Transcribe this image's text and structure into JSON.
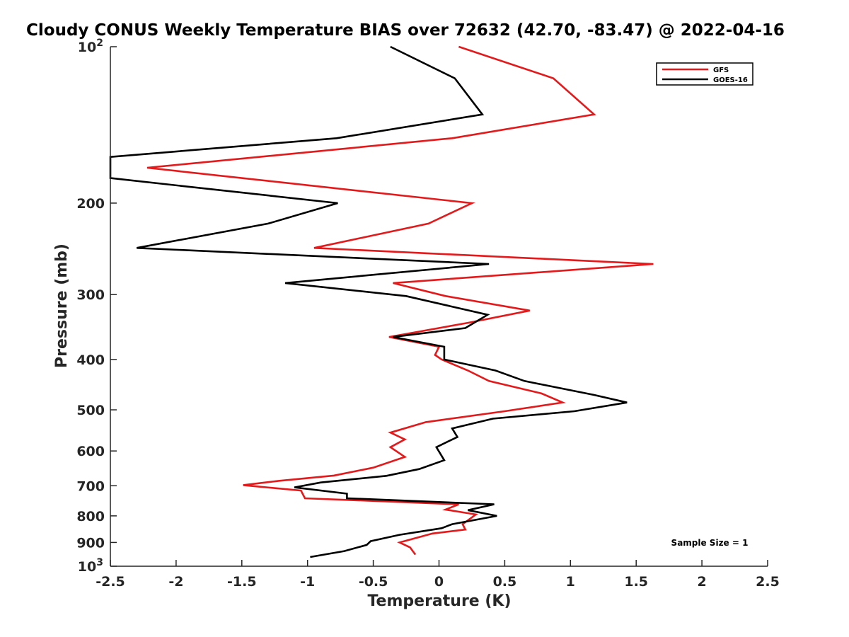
{
  "chart_data": {
    "type": "line",
    "title": "Cloudy CONUS Weekly Temperature BIAS over 72632 (42.70, -83.47) @ 2022-04-16",
    "xlabel": "Temperature (K)",
    "ylabel": "Pressure (mb)",
    "xlim": [
      -2.5,
      2.5
    ],
    "ylim": [
      100,
      1000
    ],
    "y_scale": "log",
    "y_reversed": true,
    "x_ticks": [
      "-2.5",
      "-2",
      "-1.5",
      "-1",
      "-0.5",
      "0",
      "0.5",
      "1",
      "1.5",
      "2",
      "2.5"
    ],
    "y_ticks": [
      {
        "value": 100,
        "base": "10",
        "exp": "2"
      },
      {
        "value": 200,
        "label": "200"
      },
      {
        "value": 300,
        "label": "300"
      },
      {
        "value": 400,
        "label": "400"
      },
      {
        "value": 500,
        "label": "500"
      },
      {
        "value": 600,
        "label": "600"
      },
      {
        "value": 700,
        "label": "700"
      },
      {
        "value": 800,
        "label": "800"
      },
      {
        "value": 900,
        "label": "900"
      },
      {
        "value": 1000,
        "base": "10",
        "exp": "3"
      }
    ],
    "grid": false,
    "legend_position": "top-right",
    "annotation": "Sample Size = 1",
    "series": [
      {
        "name": "GFS",
        "color": "#e31a1c",
        "points": [
          [
            0.15,
            100
          ],
          [
            0.87,
            115
          ],
          [
            1.18,
            135
          ],
          [
            0.1,
            150
          ],
          [
            -2.22,
            171
          ],
          [
            0.25,
            200
          ],
          [
            -0.08,
            219
          ],
          [
            -0.95,
            244
          ],
          [
            1.63,
            262
          ],
          [
            -0.35,
            285
          ],
          [
            0.05,
            302
          ],
          [
            0.69,
            322
          ],
          [
            0.22,
            340
          ],
          [
            -0.38,
            362
          ],
          [
            0.0,
            378
          ],
          [
            -0.03,
            392
          ],
          [
            0.02,
            400
          ],
          [
            0.22,
            420
          ],
          [
            0.38,
            440
          ],
          [
            0.78,
            465
          ],
          [
            0.94,
            484
          ],
          [
            0.5,
            503
          ],
          [
            -0.1,
            528
          ],
          [
            -0.37,
            553
          ],
          [
            -0.26,
            570
          ],
          [
            -0.37,
            590
          ],
          [
            -0.26,
            616
          ],
          [
            -0.5,
            646
          ],
          [
            -0.8,
            669
          ],
          [
            -1.22,
            685
          ],
          [
            -1.49,
            698
          ],
          [
            -1.05,
            715
          ],
          [
            -1.02,
            740
          ],
          [
            0.15,
            760
          ],
          [
            0.05,
            778
          ],
          [
            0.28,
            795
          ],
          [
            0.18,
            830
          ],
          [
            0.2,
            850
          ],
          [
            -0.05,
            865
          ],
          [
            -0.3,
            900
          ],
          [
            -0.22,
            920
          ],
          [
            -0.18,
            950
          ]
        ]
      },
      {
        "name": "GOES-16",
        "color": "#000000",
        "points": [
          [
            -0.37,
            100
          ],
          [
            0.12,
            115
          ],
          [
            0.33,
            135
          ],
          [
            -0.78,
            150
          ],
          [
            -2.5,
            163
          ],
          [
            -2.5,
            179
          ],
          [
            -0.77,
            200
          ],
          [
            -1.3,
            219
          ],
          [
            -2.3,
            244
          ],
          [
            0.38,
            262
          ],
          [
            -1.17,
            285
          ],
          [
            -0.25,
            302
          ],
          [
            0.37,
            328
          ],
          [
            0.2,
            348
          ],
          [
            -0.35,
            362
          ],
          [
            0.04,
            378
          ],
          [
            0.04,
            400
          ],
          [
            0.43,
            420
          ],
          [
            0.65,
            440
          ],
          [
            1.18,
            468
          ],
          [
            1.43,
            484
          ],
          [
            1.03,
            503
          ],
          [
            0.41,
            520
          ],
          [
            0.1,
            543
          ],
          [
            0.14,
            564
          ],
          [
            -0.02,
            590
          ],
          [
            0.04,
            625
          ],
          [
            -0.15,
            650
          ],
          [
            -0.4,
            670
          ],
          [
            -0.9,
            690
          ],
          [
            -1.1,
            705
          ],
          [
            -0.7,
            725
          ],
          [
            -0.7,
            740
          ],
          [
            0.42,
            760
          ],
          [
            0.22,
            780
          ],
          [
            0.44,
            800
          ],
          [
            0.1,
            830
          ],
          [
            0.02,
            845
          ],
          [
            -0.3,
            870
          ],
          [
            -0.52,
            895
          ],
          [
            -0.55,
            910
          ],
          [
            -0.72,
            935
          ],
          [
            -0.98,
            960
          ]
        ]
      }
    ]
  }
}
